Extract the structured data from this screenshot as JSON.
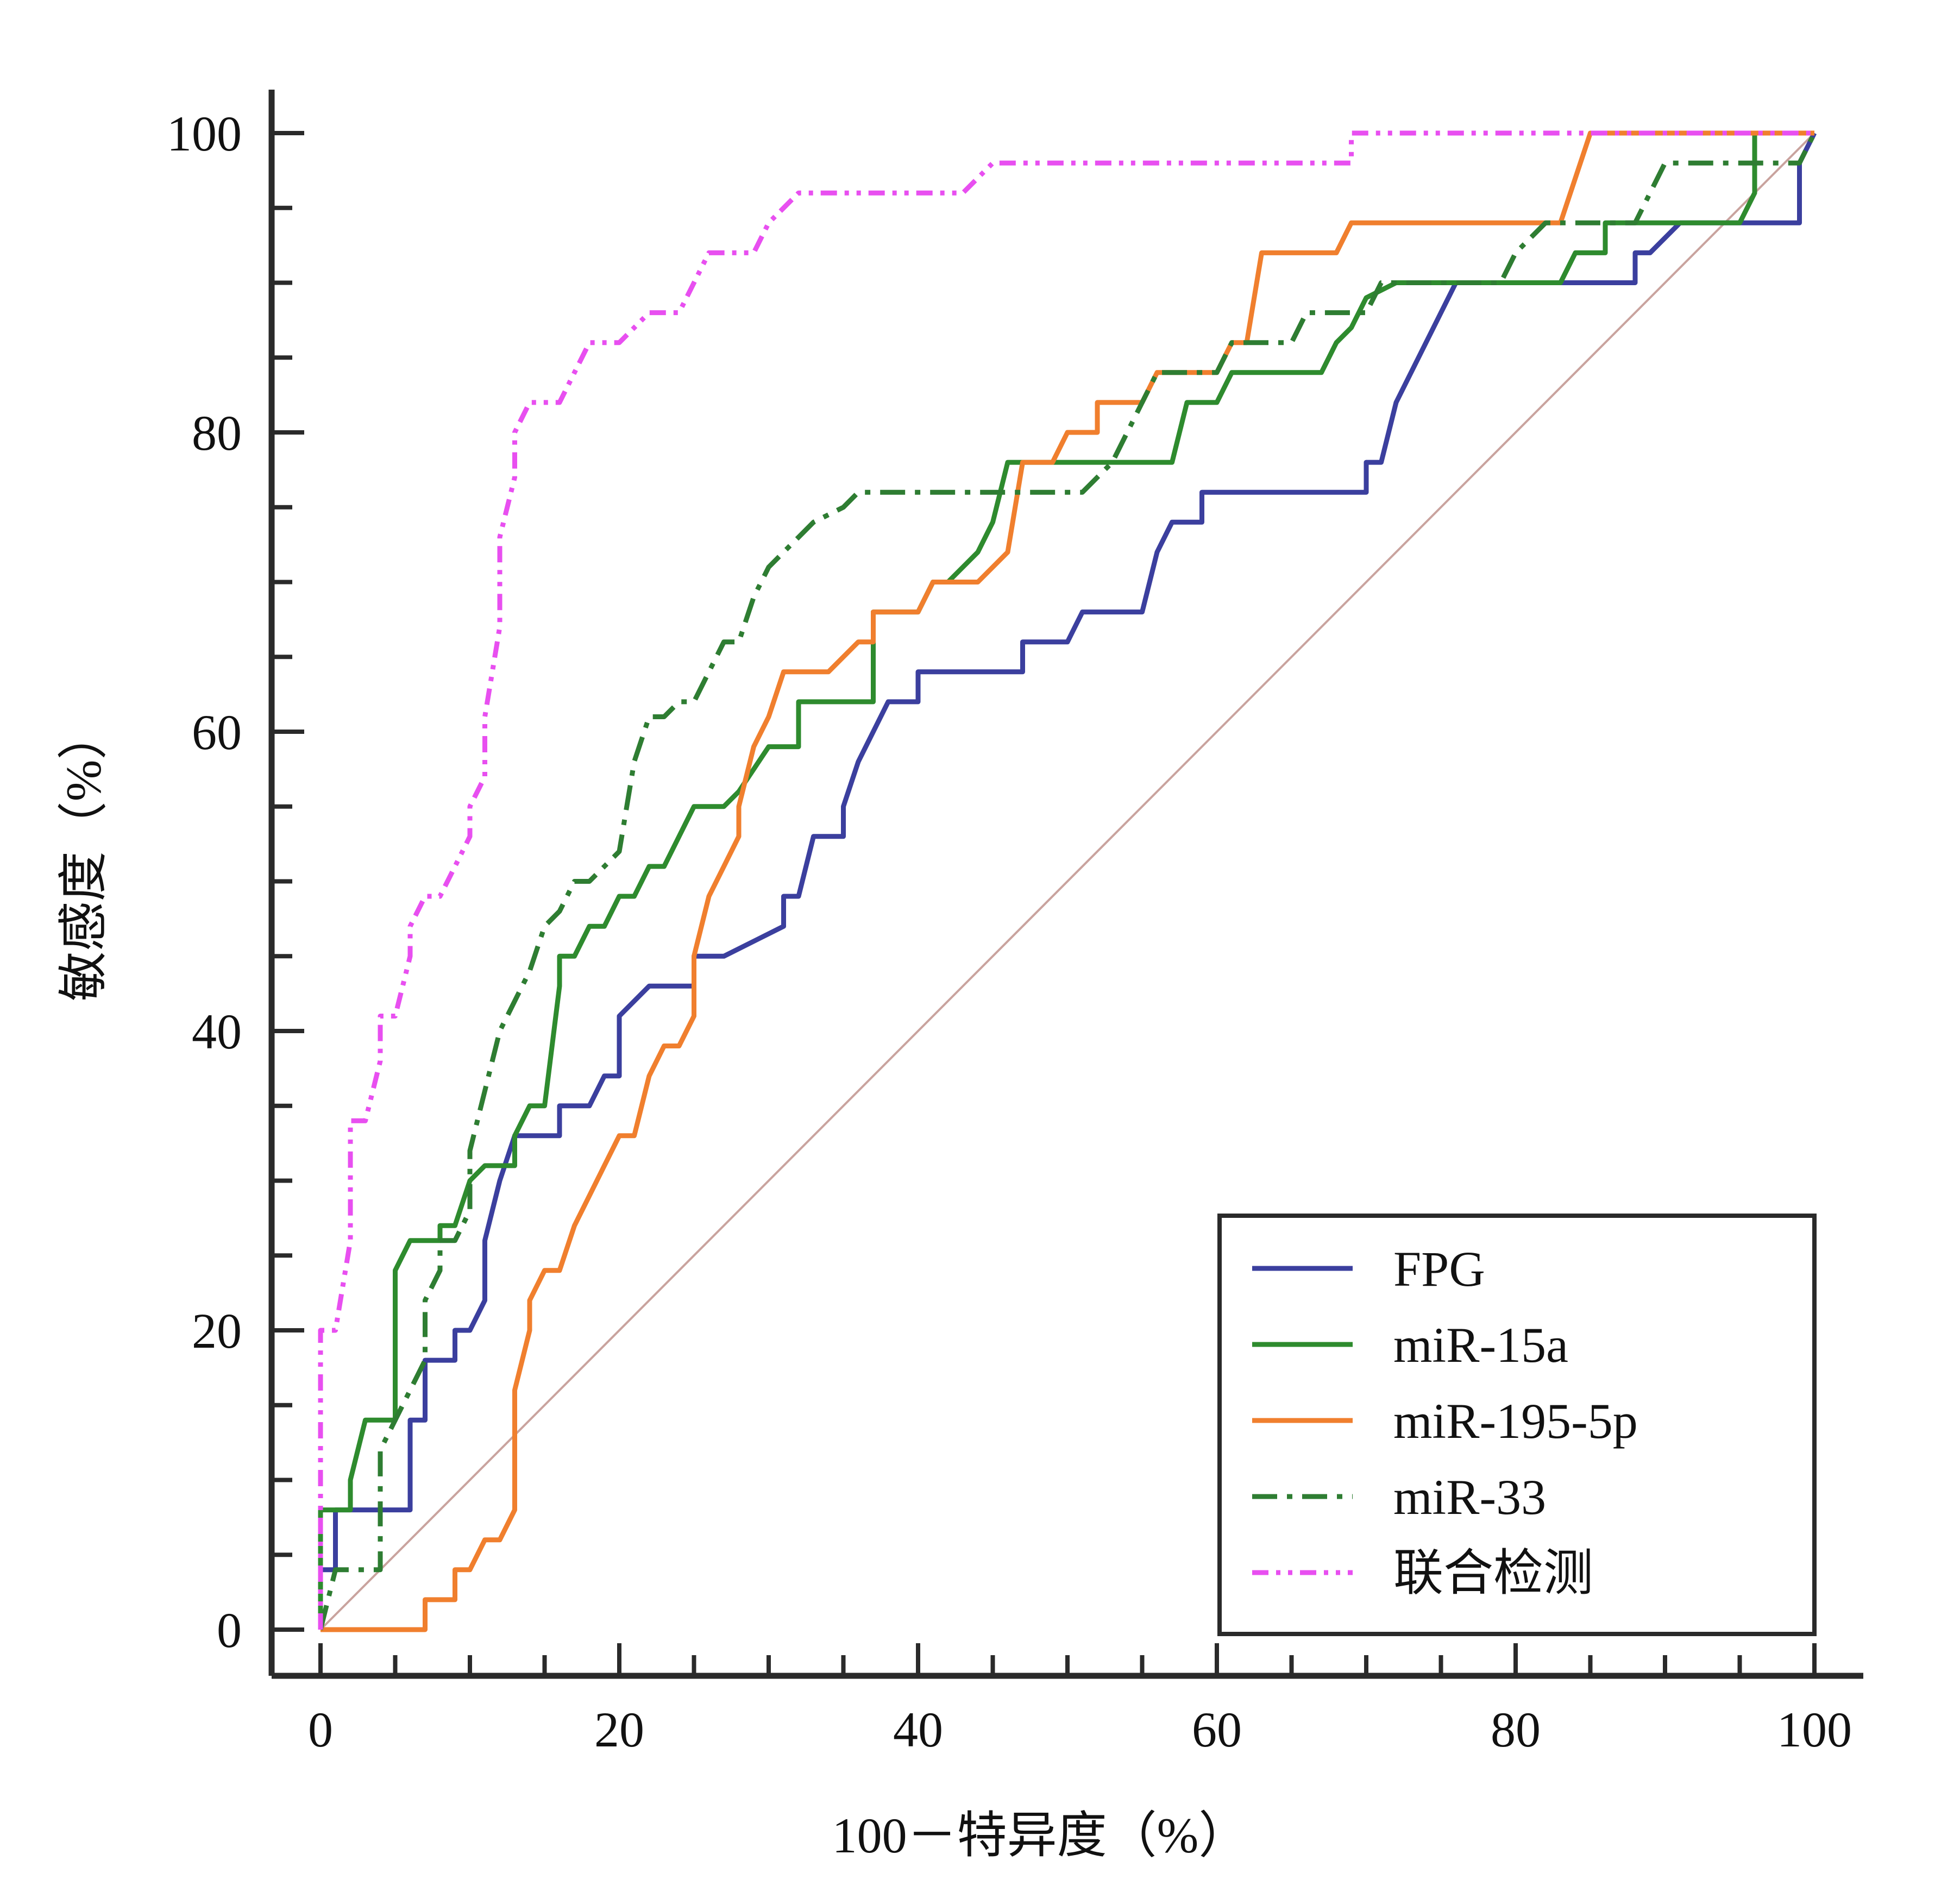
{
  "chart_data": {
    "type": "line",
    "xlabel": "100－特异度（%）",
    "ylabel": "敏感度（%）",
    "xlim": [
      0,
      100
    ],
    "ylim": [
      0,
      100
    ],
    "x_ticks": [
      "0",
      "20",
      "40",
      "60",
      "80",
      "100"
    ],
    "y_ticks": [
      "0",
      "20",
      "40",
      "60",
      "80",
      "100"
    ],
    "legend_position": "bottom-right",
    "reference_line": {
      "from": [
        0,
        0
      ],
      "to": [
        100,
        100
      ],
      "color": "#c9a39e"
    },
    "series": [
      {
        "name": "FPG",
        "color": "#3b3f9e",
        "dash": "solid",
        "points": [
          [
            0,
            0
          ],
          [
            0,
            4
          ],
          [
            1,
            4
          ],
          [
            1,
            8
          ],
          [
            6,
            8
          ],
          [
            6,
            14
          ],
          [
            7,
            14
          ],
          [
            7,
            18
          ],
          [
            9,
            18
          ],
          [
            9,
            20
          ],
          [
            10,
            20
          ],
          [
            11,
            22
          ],
          [
            11,
            26
          ],
          [
            12,
            30
          ],
          [
            13,
            33
          ],
          [
            16,
            33
          ],
          [
            16,
            35
          ],
          [
            18,
            35
          ],
          [
            19,
            37
          ],
          [
            20,
            37
          ],
          [
            20,
            41
          ],
          [
            22,
            43
          ],
          [
            25,
            43
          ],
          [
            25,
            45
          ],
          [
            27,
            45
          ],
          [
            31,
            47
          ],
          [
            31,
            49
          ],
          [
            32,
            49
          ],
          [
            33,
            53
          ],
          [
            35,
            53
          ],
          [
            35,
            55
          ],
          [
            36,
            58
          ],
          [
            37,
            60
          ],
          [
            38,
            62
          ],
          [
            40,
            62
          ],
          [
            40,
            64
          ],
          [
            43,
            64
          ],
          [
            44,
            64
          ],
          [
            47,
            64
          ],
          [
            47,
            66
          ],
          [
            50,
            66
          ],
          [
            51,
            68
          ],
          [
            55,
            68
          ],
          [
            56,
            72
          ],
          [
            57,
            74
          ],
          [
            59,
            74
          ],
          [
            59,
            76
          ],
          [
            70,
            76
          ],
          [
            70,
            78
          ],
          [
            71,
            78
          ],
          [
            72,
            82
          ],
          [
            73,
            84
          ],
          [
            75,
            88
          ],
          [
            76,
            90
          ],
          [
            84,
            90
          ],
          [
            88,
            90
          ],
          [
            88,
            92
          ],
          [
            89,
            92
          ],
          [
            91,
            94
          ],
          [
            95,
            94
          ],
          [
            99,
            94
          ],
          [
            99,
            98
          ],
          [
            100,
            100
          ]
        ]
      },
      {
        "name": "miR-15a",
        "color": "#2e8b2e",
        "dash": "solid",
        "points": [
          [
            0,
            0
          ],
          [
            0,
            8
          ],
          [
            2,
            8
          ],
          [
            2,
            10
          ],
          [
            3,
            14
          ],
          [
            5,
            14
          ],
          [
            5,
            24
          ],
          [
            6,
            26
          ],
          [
            8,
            26
          ],
          [
            8,
            27
          ],
          [
            9,
            27
          ],
          [
            10,
            30
          ],
          [
            11,
            31
          ],
          [
            13,
            31
          ],
          [
            13,
            33
          ],
          [
            14,
            35
          ],
          [
            15,
            35
          ],
          [
            16,
            43
          ],
          [
            16,
            45
          ],
          [
            17,
            45
          ],
          [
            18,
            47
          ],
          [
            19,
            47
          ],
          [
            20,
            49
          ],
          [
            21,
            49
          ],
          [
            22,
            51
          ],
          [
            23,
            51
          ],
          [
            25,
            55
          ],
          [
            27,
            55
          ],
          [
            28,
            56
          ],
          [
            30,
            59
          ],
          [
            32,
            59
          ],
          [
            32,
            62
          ],
          [
            34,
            62
          ],
          [
            37,
            62
          ],
          [
            37,
            68
          ],
          [
            38,
            68
          ],
          [
            40,
            68
          ],
          [
            41,
            70
          ],
          [
            42,
            70
          ],
          [
            44,
            72
          ],
          [
            45,
            74
          ],
          [
            46,
            78
          ],
          [
            47,
            78
          ],
          [
            50,
            78
          ],
          [
            51,
            78
          ],
          [
            57,
            78
          ],
          [
            58,
            82
          ],
          [
            60,
            82
          ],
          [
            61,
            84
          ],
          [
            67,
            84
          ],
          [
            68,
            86
          ],
          [
            69,
            87
          ],
          [
            70,
            89
          ],
          [
            72,
            90
          ],
          [
            82,
            90
          ],
          [
            83,
            90
          ],
          [
            84,
            92
          ],
          [
            86,
            92
          ],
          [
            86,
            94
          ],
          [
            95,
            94
          ],
          [
            96,
            96
          ],
          [
            96,
            100
          ],
          [
            100,
            100
          ]
        ]
      },
      {
        "name": "miR-195-5p",
        "color": "#f07f2e",
        "dash": "solid",
        "points": [
          [
            0,
            0
          ],
          [
            7,
            0
          ],
          [
            7,
            2
          ],
          [
            9,
            2
          ],
          [
            9,
            4
          ],
          [
            10,
            4
          ],
          [
            11,
            6
          ],
          [
            12,
            6
          ],
          [
            13,
            8
          ],
          [
            13,
            16
          ],
          [
            14,
            20
          ],
          [
            14,
            22
          ],
          [
            15,
            24
          ],
          [
            16,
            24
          ],
          [
            17,
            27
          ],
          [
            18,
            29
          ],
          [
            19,
            31
          ],
          [
            20,
            33
          ],
          [
            21,
            33
          ],
          [
            22,
            37
          ],
          [
            23,
            39
          ],
          [
            24,
            39
          ],
          [
            25,
            41
          ],
          [
            25,
            45
          ],
          [
            26,
            49
          ],
          [
            27,
            51
          ],
          [
            28,
            53
          ],
          [
            28,
            55
          ],
          [
            29,
            59
          ],
          [
            30,
            61
          ],
          [
            31,
            64
          ],
          [
            34,
            64
          ],
          [
            36,
            66
          ],
          [
            37,
            66
          ],
          [
            37,
            68
          ],
          [
            40,
            68
          ],
          [
            41,
            70
          ],
          [
            44,
            70
          ],
          [
            46,
            72
          ],
          [
            47,
            78
          ],
          [
            49,
            78
          ],
          [
            50,
            80
          ],
          [
            52,
            80
          ],
          [
            52,
            82
          ],
          [
            55,
            82
          ],
          [
            56,
            84
          ],
          [
            60,
            84
          ],
          [
            61,
            86
          ],
          [
            62,
            86
          ],
          [
            63,
            92
          ],
          [
            68,
            92
          ],
          [
            69,
            94
          ],
          [
            83,
            94
          ],
          [
            85,
            100
          ],
          [
            100,
            100
          ]
        ]
      },
      {
        "name": "miR-33",
        "color": "#2e7d32",
        "dash": "dashdot",
        "points": [
          [
            0,
            0
          ],
          [
            1,
            4
          ],
          [
            4,
            4
          ],
          [
            4,
            12
          ],
          [
            5,
            14
          ],
          [
            6,
            16
          ],
          [
            7,
            18
          ],
          [
            7,
            22
          ],
          [
            8,
            24
          ],
          [
            8,
            26
          ],
          [
            9,
            26
          ],
          [
            10,
            28
          ],
          [
            10,
            32
          ],
          [
            11,
            36
          ],
          [
            12,
            40
          ],
          [
            13,
            42
          ],
          [
            14,
            44
          ],
          [
            15,
            47
          ],
          [
            16,
            48
          ],
          [
            17,
            50
          ],
          [
            18,
            50
          ],
          [
            19,
            51
          ],
          [
            20,
            52
          ],
          [
            21,
            58
          ],
          [
            22,
            61
          ],
          [
            23,
            61
          ],
          [
            24,
            62
          ],
          [
            25,
            62
          ],
          [
            26,
            64
          ],
          [
            27,
            66
          ],
          [
            28,
            66
          ],
          [
            29,
            69
          ],
          [
            30,
            71
          ],
          [
            31,
            72
          ],
          [
            32,
            73
          ],
          [
            33,
            74
          ],
          [
            35,
            75
          ],
          [
            36,
            76
          ],
          [
            37,
            76
          ],
          [
            40,
            76
          ],
          [
            51,
            76
          ],
          [
            53,
            78
          ],
          [
            54,
            80
          ],
          [
            55,
            82
          ],
          [
            56,
            84
          ],
          [
            60,
            84
          ],
          [
            61,
            86
          ],
          [
            65,
            86
          ],
          [
            66,
            88
          ],
          [
            70,
            88
          ],
          [
            71,
            90
          ],
          [
            79,
            90
          ],
          [
            80,
            92
          ],
          [
            82,
            94
          ],
          [
            88,
            94
          ],
          [
            89,
            96
          ],
          [
            90,
            98
          ],
          [
            96,
            98
          ],
          [
            99,
            98
          ],
          [
            100,
            100
          ]
        ]
      },
      {
        "name": "联合检测",
        "color": "#e84ff0",
        "dash": "dashdotdot",
        "points": [
          [
            0,
            0
          ],
          [
            0,
            20
          ],
          [
            1,
            20
          ],
          [
            2,
            26
          ],
          [
            2,
            28
          ],
          [
            2,
            34
          ],
          [
            3,
            34
          ],
          [
            4,
            38
          ],
          [
            4,
            41
          ],
          [
            5,
            41
          ],
          [
            6,
            45
          ],
          [
            6,
            47
          ],
          [
            7,
            49
          ],
          [
            8,
            49
          ],
          [
            9,
            51
          ],
          [
            10,
            53
          ],
          [
            10,
            55
          ],
          [
            11,
            57
          ],
          [
            11,
            61
          ],
          [
            12,
            67
          ],
          [
            12,
            73
          ],
          [
            13,
            77
          ],
          [
            13,
            80
          ],
          [
            14,
            82
          ],
          [
            16,
            82
          ],
          [
            17,
            84
          ],
          [
            18,
            86
          ],
          [
            20,
            86
          ],
          [
            22,
            88
          ],
          [
            24,
            88
          ],
          [
            25,
            90
          ],
          [
            26,
            92
          ],
          [
            29,
            92
          ],
          [
            30,
            94
          ],
          [
            32,
            96
          ],
          [
            43,
            96
          ],
          [
            45,
            98
          ],
          [
            58,
            98
          ],
          [
            69,
            98
          ],
          [
            69,
            100
          ],
          [
            100,
            100
          ]
        ]
      }
    ]
  }
}
